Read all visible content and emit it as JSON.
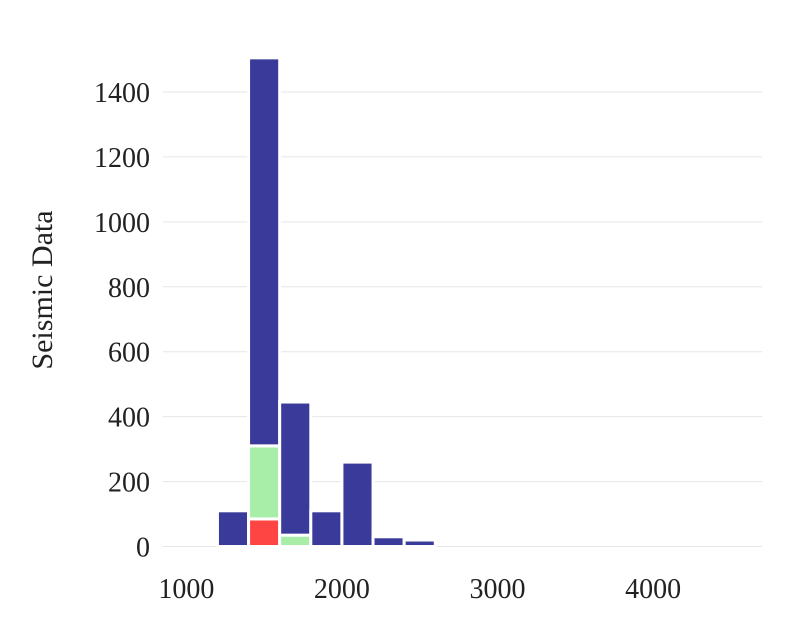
{
  "chart_data": {
    "type": "bar",
    "stacked": true,
    "title": "",
    "xlabel": "",
    "ylabel": "Seismic Data",
    "xlim": [
      850,
      4700
    ],
    "ylim": [
      -60,
      1560
    ],
    "x_ticks": [
      1000,
      2000,
      3000,
      4000
    ],
    "y_ticks": [
      0,
      200,
      400,
      600,
      800,
      1000,
      1200,
      1400
    ],
    "grid": "horizontal",
    "bin_edges": [
      1200,
      1400,
      1600,
      1800,
      2000,
      2200,
      2400,
      2600
    ],
    "series": [
      {
        "values": [
          0,
          85,
          0,
          0,
          0,
          0,
          0
        ],
        "color": "#ff4444"
      },
      {
        "values": [
          0,
          225,
          35,
          0,
          0,
          0,
          0
        ],
        "color": "#a8eea8"
      },
      {
        "values": [
          110,
          1195,
          410,
          110,
          260,
          30,
          20
        ],
        "color": "#3a3a9a"
      }
    ]
  }
}
